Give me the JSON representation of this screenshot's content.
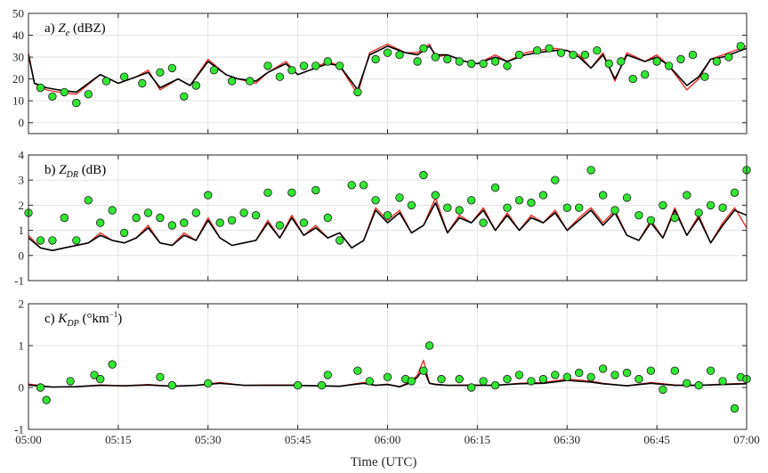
{
  "chart_data": {
    "type": "line",
    "xlabel": "Time (UTC)",
    "x_ticks": [
      "05:00",
      "05:15",
      "05:30",
      "05:45",
      "06:00",
      "06:15",
      "06:30",
      "06:45",
      "07:00"
    ],
    "xlim": [
      "05:00",
      "07:00"
    ],
    "grid": true,
    "colors": {
      "black_series": "#000000",
      "red_series": "#e8231c",
      "markers": "#33e633",
      "marker_edge": "#1a1a1a"
    },
    "panels": [
      {
        "label_prefix": "a)",
        "label_symbol": "Z",
        "label_sub": "e",
        "label_sup": "",
        "label_unit_pre": "(dBZ)",
        "label_unit_post": "",
        "ylim": [
          -5,
          50
        ],
        "y_ticks": [
          "0",
          "10",
          "20",
          "30",
          "40",
          "50"
        ],
        "y_tick_values": [
          0,
          10,
          20,
          30,
          40,
          50
        ],
        "series": [
          {
            "color": "#e8231c",
            "width": 1.3,
            "x": [
              0,
              1,
              3,
              5,
              8,
              12,
              15,
              18,
              20,
              22,
              25,
              27,
              30,
              33,
              35,
              38,
              40,
              43,
              45,
              47,
              50,
              52,
              55,
              57,
              60,
              63,
              65,
              67,
              68,
              70,
              73,
              75,
              78,
              80,
              83,
              85,
              88,
              90,
              92,
              94,
              96,
              98,
              100,
              103,
              105,
              107,
              110,
              112,
              114,
              116,
              118,
              120
            ],
            "y": [
              32,
              18,
              15,
              14,
              13,
              22,
              18,
              21,
              24,
              15,
              20,
              17,
              29,
              22,
              20,
              18,
              23,
              28,
              22,
              24,
              28,
              26,
              13,
              32,
              36,
              32,
              32,
              36,
              30,
              31,
              28,
              27,
              31,
              28,
              32,
              33,
              34,
              33,
              31,
              25,
              32,
              19,
              32,
              28,
              31,
              26,
              15,
              20,
              29,
              31,
              33,
              35
            ]
          },
          {
            "color": "#000000",
            "width": 1.6,
            "x": [
              0,
              1,
              3,
              5,
              8,
              12,
              15,
              18,
              20,
              22,
              25,
              27,
              30,
              33,
              35,
              38,
              40,
              43,
              45,
              47,
              50,
              52,
              55,
              57,
              60,
              63,
              65,
              67,
              68,
              70,
              73,
              75,
              78,
              80,
              83,
              85,
              88,
              90,
              92,
              94,
              96,
              98,
              100,
              103,
              105,
              107,
              110,
              112,
              114,
              116,
              118,
              120
            ],
            "y": [
              31,
              18,
              16,
              15,
              14,
              22,
              18,
              21,
              23,
              16,
              20,
              17,
              28,
              22,
              20,
              19,
              23,
              27,
              22,
              24,
              27,
              26,
              15,
              31,
              35,
              32,
              31,
              35,
              31,
              31,
              28,
              27,
              30,
              28,
              31,
              32,
              33,
              33,
              30,
              25,
              31,
              20,
              31,
              28,
              30,
              26,
              17,
              21,
              29,
              30,
              32,
              34
            ]
          }
        ],
        "scatter": {
          "x": [
            2,
            4,
            6,
            8,
            10,
            13,
            16,
            19,
            22,
            24,
            26,
            28,
            31,
            34,
            37,
            40,
            42,
            44,
            46,
            48,
            50,
            52,
            55,
            58,
            60,
            62,
            65,
            66,
            68,
            70,
            72,
            74,
            76,
            78,
            80,
            82,
            85,
            87,
            89,
            91,
            93,
            95,
            97,
            99,
            101,
            103,
            105,
            107,
            109,
            111,
            113,
            115,
            117,
            119
          ],
          "y": [
            16,
            12,
            14,
            9,
            13,
            19,
            21,
            18,
            23,
            25,
            12,
            17,
            24,
            19,
            19,
            26,
            21,
            24,
            26,
            26,
            28,
            26,
            14,
            29,
            32,
            31,
            28,
            34,
            30,
            29,
            28,
            27,
            27,
            28,
            26,
            31,
            33,
            34,
            32,
            31,
            31,
            33,
            27,
            28,
            20,
            22,
            28,
            26,
            29,
            31,
            21,
            28,
            30,
            35
          ]
        }
      },
      {
        "label_prefix": "b)",
        "label_symbol": "Z",
        "label_sub": "DR",
        "label_sup": "",
        "label_unit_pre": "(dB)",
        "label_unit_post": "",
        "ylim": [
          -1,
          4
        ],
        "y_ticks": [
          "-1",
          "0",
          "1",
          "2",
          "3",
          "4"
        ],
        "y_tick_values": [
          -1,
          0,
          1,
          2,
          3,
          4
        ],
        "series": [
          {
            "color": "#e8231c",
            "width": 1.3,
            "x": [
              0,
              2,
              4,
              6,
              8,
              10,
              12,
              14,
              16,
              18,
              20,
              22,
              24,
              26,
              28,
              30,
              32,
              34,
              36,
              38,
              40,
              42,
              44,
              46,
              48,
              50,
              52,
              54,
              56,
              58,
              60,
              62,
              64,
              66,
              68,
              70,
              72,
              74,
              76,
              78,
              80,
              82,
              84,
              86,
              88,
              90,
              92,
              94,
              96,
              98,
              100,
              102,
              104,
              106,
              108,
              110,
              112,
              114,
              116,
              118,
              120
            ],
            "y": [
              0.8,
              0.3,
              0.2,
              0.3,
              0.4,
              0.5,
              0.9,
              0.6,
              0.5,
              0.7,
              1.2,
              0.5,
              0.4,
              0.9,
              0.6,
              1.5,
              0.7,
              0.4,
              0.5,
              0.6,
              1.4,
              0.7,
              1.6,
              0.8,
              1.2,
              0.7,
              0.9,
              0.3,
              0.6,
              1.9,
              1.4,
              1.8,
              0.9,
              1.2,
              2.3,
              0.9,
              1.6,
              1.3,
              1.9,
              1.0,
              1.7,
              1.0,
              1.6,
              1.3,
              1.8,
              1.0,
              1.5,
              1.9,
              1.3,
              1.8,
              0.8,
              0.6,
              1.4,
              0.7,
              1.9,
              0.8,
              1.6,
              0.5,
              1.3,
              1.9,
              1.1
            ]
          },
          {
            "color": "#000000",
            "width": 1.6,
            "x": [
              0,
              2,
              4,
              6,
              8,
              10,
              12,
              14,
              16,
              18,
              20,
              22,
              24,
              26,
              28,
              30,
              32,
              34,
              36,
              38,
              40,
              42,
              44,
              46,
              48,
              50,
              52,
              54,
              56,
              58,
              60,
              62,
              64,
              66,
              68,
              70,
              72,
              74,
              76,
              78,
              80,
              82,
              84,
              86,
              88,
              90,
              92,
              94,
              96,
              98,
              100,
              102,
              104,
              106,
              108,
              110,
              112,
              114,
              116,
              118,
              120
            ],
            "y": [
              0.7,
              0.3,
              0.2,
              0.3,
              0.4,
              0.5,
              0.8,
              0.6,
              0.5,
              0.7,
              1.1,
              0.5,
              0.4,
              0.8,
              0.6,
              1.4,
              0.7,
              0.4,
              0.5,
              0.6,
              1.3,
              0.7,
              1.5,
              0.8,
              1.1,
              0.7,
              0.9,
              0.3,
              0.6,
              1.8,
              1.3,
              1.7,
              0.9,
              1.2,
              2.1,
              0.9,
              1.5,
              1.3,
              1.8,
              1.0,
              1.6,
              1.0,
              1.5,
              1.3,
              1.7,
              1.0,
              1.4,
              1.8,
              1.2,
              1.7,
              0.8,
              0.6,
              1.3,
              0.7,
              1.8,
              0.8,
              1.5,
              0.5,
              1.2,
              1.8,
              1.6
            ]
          }
        ],
        "scatter": {
          "x": [
            0,
            2,
            4,
            6,
            8,
            10,
            12,
            14,
            16,
            18,
            20,
            22,
            24,
            26,
            28,
            30,
            32,
            34,
            36,
            38,
            40,
            42,
            44,
            46,
            48,
            50,
            52,
            54,
            56,
            58,
            60,
            62,
            64,
            66,
            68,
            70,
            72,
            74,
            76,
            78,
            80,
            82,
            84,
            86,
            88,
            90,
            92,
            94,
            96,
            98,
            100,
            102,
            104,
            106,
            108,
            110,
            112,
            114,
            116,
            118,
            120
          ],
          "y": [
            1.7,
            0.6,
            0.6,
            1.5,
            0.6,
            2.2,
            1.3,
            1.8,
            0.9,
            1.5,
            1.7,
            1.5,
            1.2,
            1.3,
            1.7,
            2.4,
            1.3,
            1.4,
            1.7,
            1.6,
            2.5,
            1.2,
            2.5,
            1.3,
            2.6,
            1.5,
            0.6,
            2.8,
            2.8,
            2.2,
            1.6,
            2.3,
            2.0,
            3.2,
            2.4,
            1.9,
            1.8,
            2.2,
            1.3,
            2.7,
            1.9,
            2.2,
            2.1,
            2.4,
            3.0,
            1.9,
            1.9,
            3.4,
            2.4,
            1.8,
            2.3,
            1.6,
            1.4,
            2.0,
            1.5,
            2.4,
            1.7,
            2.0,
            1.9,
            2.5,
            3.4
          ]
        }
      },
      {
        "label_prefix": "c)",
        "label_symbol": "K",
        "label_sub": "DP",
        "label_sup": "−1",
        "label_unit_pre": "(°km",
        "label_unit_post": ")",
        "ylim": [
          -1,
          2
        ],
        "y_ticks": [
          "-1",
          "0",
          "1",
          "2"
        ],
        "y_tick_values": [
          -1,
          0,
          1,
          2
        ],
        "series": [
          {
            "color": "#e8231c",
            "width": 1.3,
            "x": [
              0,
              4,
              8,
              12,
              16,
              20,
              24,
              28,
              32,
              36,
              40,
              44,
              48,
              52,
              56,
              58,
              60,
              62,
              64,
              65,
              66,
              67,
              68,
              70,
              74,
              78,
              82,
              86,
              90,
              94,
              96,
              100,
              104,
              108,
              112,
              116,
              120
            ],
            "y": [
              0.08,
              0.01,
              0.02,
              0.06,
              0.04,
              0.07,
              0.03,
              0.05,
              0.12,
              0.05,
              0.06,
              0.06,
              0.04,
              0.03,
              0.12,
              0.05,
              0.08,
              0.02,
              0.15,
              0.3,
              0.65,
              0.1,
              0.08,
              0.05,
              0.06,
              0.05,
              0.1,
              0.12,
              0.2,
              0.15,
              0.1,
              0.04,
              0.12,
              0.06,
              0.05,
              0.08,
              0.1
            ]
          },
          {
            "color": "#000000",
            "width": 1.6,
            "x": [
              0,
              4,
              8,
              12,
              16,
              20,
              24,
              28,
              32,
              36,
              40,
              44,
              48,
              52,
              56,
              58,
              60,
              62,
              64,
              65,
              66,
              67,
              68,
              70,
              74,
              78,
              82,
              86,
              90,
              94,
              96,
              100,
              104,
              108,
              112,
              116,
              120
            ],
            "y": [
              0.06,
              0.01,
              0.02,
              0.05,
              0.04,
              0.06,
              0.03,
              0.05,
              0.1,
              0.05,
              0.05,
              0.05,
              0.04,
              0.03,
              0.1,
              0.05,
              0.07,
              0.02,
              0.12,
              0.25,
              0.45,
              0.1,
              0.07,
              0.05,
              0.05,
              0.05,
              0.09,
              0.1,
              0.17,
              0.13,
              0.09,
              0.04,
              0.1,
              0.05,
              0.05,
              0.07,
              0.09
            ]
          }
        ],
        "scatter": {
          "x": [
            2,
            3,
            7,
            11,
            12,
            14,
            22,
            24,
            30,
            45,
            49,
            50,
            55,
            57,
            60,
            63,
            64,
            66,
            67,
            69,
            72,
            74,
            76,
            78,
            80,
            82,
            84,
            86,
            88,
            90,
            92,
            94,
            96,
            98,
            100,
            102,
            104,
            106,
            108,
            110,
            112,
            114,
            116,
            118,
            119,
            120
          ],
          "y": [
            0.0,
            -0.3,
            0.15,
            0.3,
            0.2,
            0.55,
            0.25,
            0.05,
            0.1,
            0.05,
            0.05,
            0.3,
            0.4,
            0.15,
            0.25,
            0.2,
            0.15,
            0.4,
            1.0,
            0.2,
            0.2,
            0.0,
            0.15,
            0.05,
            0.2,
            0.3,
            0.15,
            0.2,
            0.3,
            0.25,
            0.35,
            0.25,
            0.45,
            0.3,
            0.35,
            0.2,
            0.4,
            -0.05,
            0.4,
            0.1,
            0.05,
            0.4,
            0.15,
            -0.5,
            0.25,
            0.2
          ]
        }
      }
    ]
  }
}
